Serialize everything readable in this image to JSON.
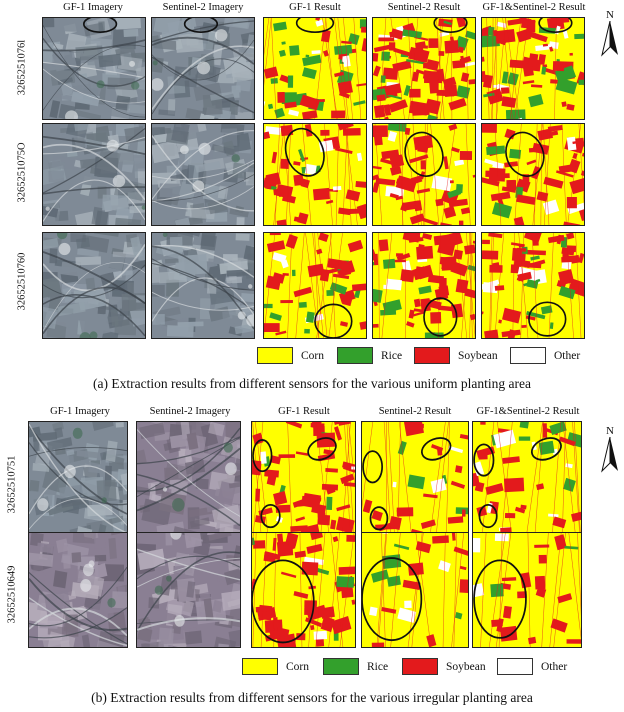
{
  "panel_a": {
    "columns": [
      "GF-1 Imagery",
      "Sentinel-2  Imagery",
      "GF-1 Result",
      "Sentinel-2  Result",
      "GF-1&Sentinel-2  Result"
    ],
    "rows": [
      "3265251076l",
      "3265251075O",
      "32652510760"
    ],
    "legend": [
      {
        "label": "Corn",
        "color": "#ffff00"
      },
      {
        "label": "Rice",
        "color": "#33a02c"
      },
      {
        "label": "Soybean",
        "color": "#e31a1c"
      },
      {
        "label": "Other",
        "color": "#ffffff"
      }
    ],
    "caption": "(a) Extraction results from different sensors for the various uniform planting area",
    "north_label": "N"
  },
  "panel_b": {
    "columns": [
      "GF-1 Imagery",
      "Sentinel-2 Imagery",
      "GF-1 Result",
      "Sentinel-2  Result",
      "GF-1&Sentinel-2  Result"
    ],
    "rows": [
      "32652510751",
      "32652510649"
    ],
    "legend": [
      {
        "label": "Corn",
        "color": "#ffff00"
      },
      {
        "label": "Rice",
        "color": "#33a02c"
      },
      {
        "label": "Soybean",
        "color": "#e31a1c"
      },
      {
        "label": "Other",
        "color": "#ffffff"
      }
    ],
    "caption": "(b) Extraction results from different sensors for the various irregular planting area",
    "north_label": "N"
  }
}
